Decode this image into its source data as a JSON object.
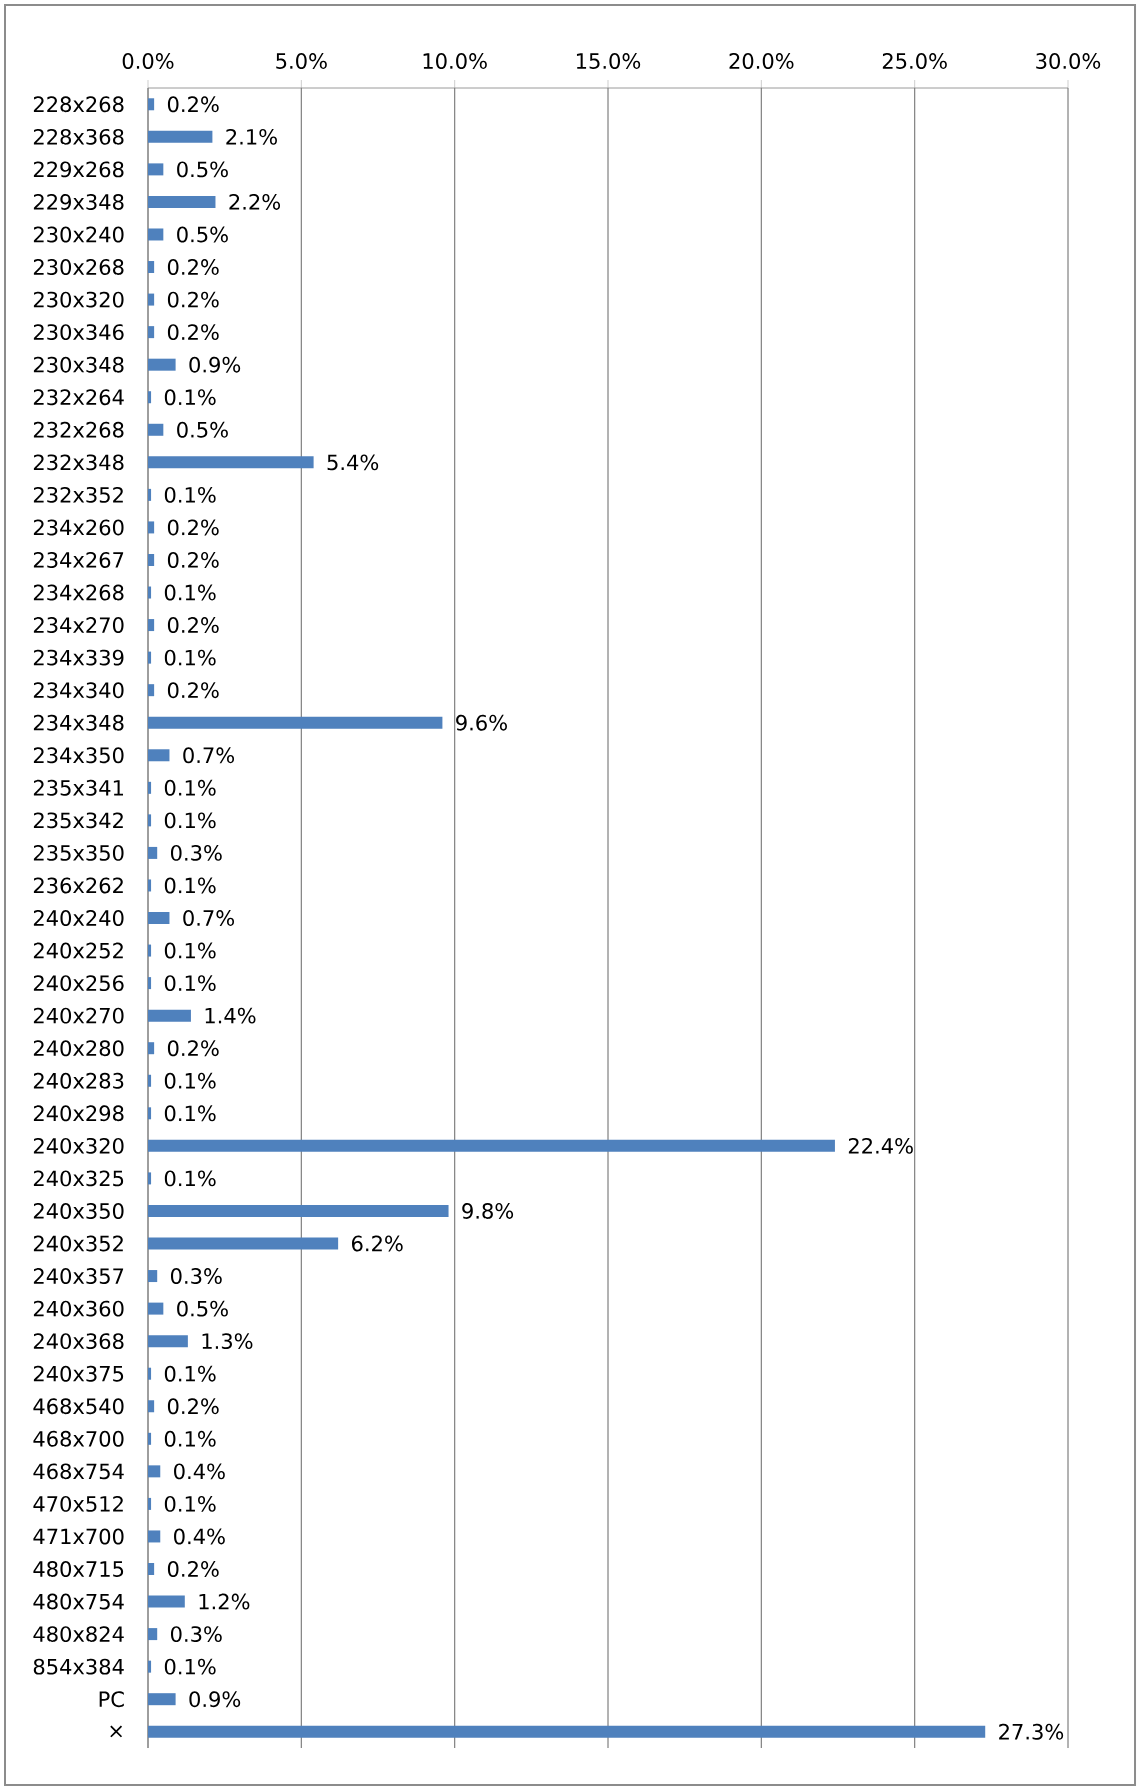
{
  "chart_data": {
    "type": "bar",
    "orientation": "horizontal",
    "categories": [
      "228x268",
      "228x368",
      "229x268",
      "229x348",
      "230x240",
      "230x268",
      "230x320",
      "230x346",
      "230x348",
      "232x264",
      "232x268",
      "232x348",
      "232x352",
      "234x260",
      "234x267",
      "234x268",
      "234x270",
      "234x339",
      "234x340",
      "234x348",
      "234x350",
      "235x341",
      "235x342",
      "235x350",
      "236x262",
      "240x240",
      "240x252",
      "240x256",
      "240x270",
      "240x280",
      "240x283",
      "240x298",
      "240x320",
      "240x325",
      "240x350",
      "240x352",
      "240x357",
      "240x360",
      "240x368",
      "240x375",
      "468x540",
      "468x700",
      "468x754",
      "470x512",
      "471x700",
      "480x715",
      "480x754",
      "480x824",
      "854x384",
      "PC",
      "×"
    ],
    "values": [
      0.2,
      2.1,
      0.5,
      2.2,
      0.5,
      0.2,
      0.2,
      0.2,
      0.9,
      0.1,
      0.5,
      5.4,
      0.1,
      0.2,
      0.2,
      0.1,
      0.2,
      0.1,
      0.2,
      9.6,
      0.7,
      0.1,
      0.1,
      0.3,
      0.1,
      0.7,
      0.1,
      0.1,
      1.4,
      0.2,
      0.1,
      0.1,
      22.4,
      0.1,
      9.8,
      6.2,
      0.3,
      0.5,
      1.3,
      0.1,
      0.2,
      0.1,
      0.4,
      0.1,
      0.4,
      0.2,
      1.2,
      0.3,
      0.1,
      0.9,
      27.3
    ],
    "value_labels": [
      "0.2%",
      "2.1%",
      "0.5%",
      "2.2%",
      "0.5%",
      "0.2%",
      "0.2%",
      "0.2%",
      "0.9%",
      "0.1%",
      "0.5%",
      "5.4%",
      "0.1%",
      "0.2%",
      "0.2%",
      "0.1%",
      "0.2%",
      "0.1%",
      "0.2%",
      "9.6%",
      "0.7%",
      "0.1%",
      "0.1%",
      "0.3%",
      "0.1%",
      "0.7%",
      "0.1%",
      "0.1%",
      "1.4%",
      "0.2%",
      "0.1%",
      "0.1%",
      "22.4%",
      "0.1%",
      "9.8%",
      "6.2%",
      "0.3%",
      "0.5%",
      "1.3%",
      "0.1%",
      "0.2%",
      "0.1%",
      "0.4%",
      "0.1%",
      "0.4%",
      "0.2%",
      "1.2%",
      "0.3%",
      "0.1%",
      "0.9%",
      "27.3%"
    ],
    "color": "#4f81bd",
    "xlim": [
      0,
      30
    ],
    "xticks": [
      {
        "value": 0,
        "label": "0.0%"
      },
      {
        "value": 5,
        "label": "5.0%"
      },
      {
        "value": 10,
        "label": "10.0%"
      },
      {
        "value": 15,
        "label": "15.0%"
      },
      {
        "value": 20,
        "label": "20.0%"
      },
      {
        "value": 25,
        "label": "25.0%"
      },
      {
        "value": 30,
        "label": "30.0%"
      }
    ],
    "grid": "x"
  }
}
